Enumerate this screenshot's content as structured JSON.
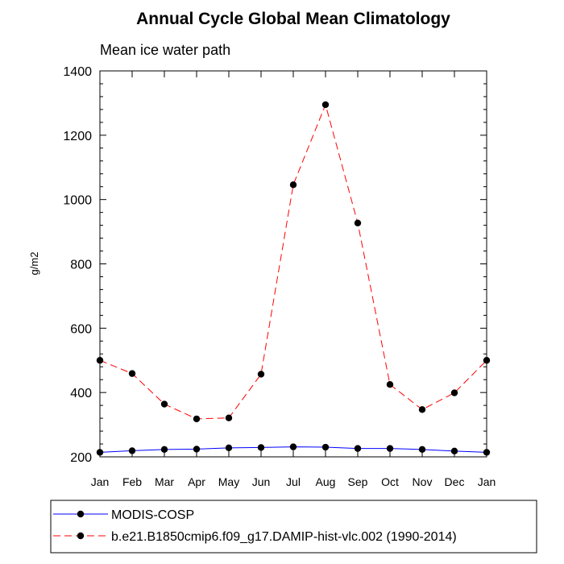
{
  "chart_data": {
    "type": "line",
    "title": "Annual Cycle Global Mean Climatology",
    "subtitle": "Mean ice water path",
    "xlabel": "",
    "ylabel": "g/m2",
    "categories": [
      "Jan",
      "Feb",
      "Mar",
      "Apr",
      "May",
      "Jun",
      "Jul",
      "Aug",
      "Sep",
      "Oct",
      "Nov",
      "Dec",
      "Jan"
    ],
    "ylim": [
      200,
      1400
    ],
    "yticks": [
      "200",
      "400",
      "600",
      "800",
      "1000",
      "1200",
      "1400"
    ],
    "grid": false,
    "legend_position": "bottom",
    "series": [
      {
        "name": "MODIS-COSP",
        "color": "#0000ff",
        "line_style": "solid",
        "marker": "filled-circle",
        "values": [
          214,
          219,
          223,
          224,
          228,
          229,
          231,
          230,
          226,
          226,
          223,
          218,
          214
        ]
      },
      {
        "name": "b.e21.B1850cmip6.f09_g17.DAMIP-hist-vlc.002 (1990-2014)",
        "color": "#ff0000",
        "line_style": "dashed",
        "marker": "filled-circle",
        "values": [
          500,
          459,
          364,
          318,
          321,
          457,
          1046,
          1295,
          927,
          425,
          347,
          399,
          500
        ]
      }
    ]
  }
}
